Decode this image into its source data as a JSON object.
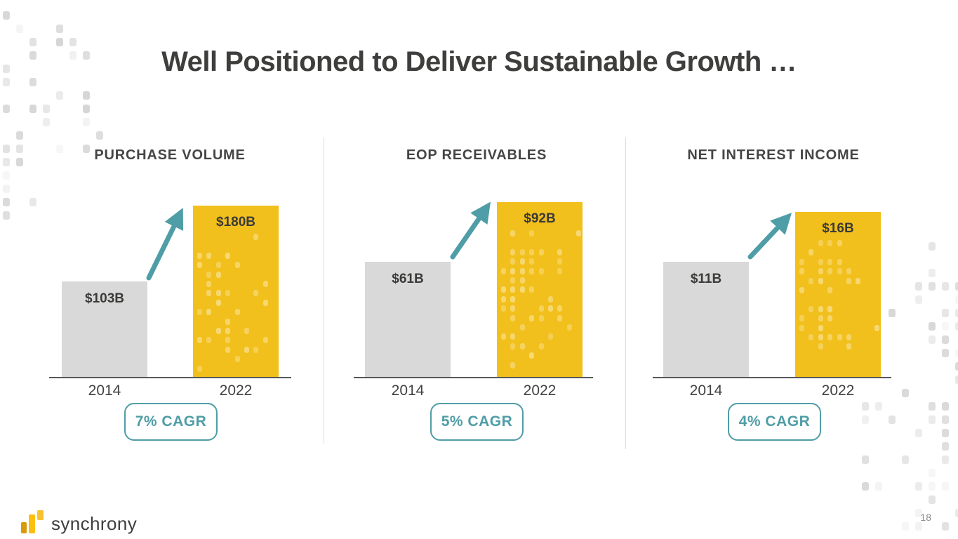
{
  "slide": {
    "title": "Well Positioned to Deliver Sustainable Growth …",
    "brand": "synchrony",
    "page_number": "18"
  },
  "charts": [
    {
      "title": "PURCHASE VOLUME",
      "start_year": "2014",
      "end_year": "2022",
      "start_label": "$103B",
      "end_label": "$180B",
      "cagr": "7% CAGR"
    },
    {
      "title": "EOP RECEIVABLES",
      "start_year": "2014",
      "end_year": "2022",
      "start_label": "$61B",
      "end_label": "$92B",
      "cagr": "5% CAGR"
    },
    {
      "title": "NET INTEREST INCOME",
      "start_year": "2014",
      "end_year": "2022",
      "start_label": "$11B",
      "end_label": "$16B",
      "cagr": "4% CAGR"
    }
  ],
  "chart_data": [
    {
      "type": "bar",
      "title": "PURCHASE VOLUME",
      "categories": [
        "2014",
        "2022"
      ],
      "values": [
        103,
        180
      ],
      "unit": "USD billions",
      "data_labels": [
        "$103B",
        "$180B"
      ],
      "annotation": "7% CAGR",
      "bar_colors": [
        "#d9d9d9",
        "#f2c01c"
      ],
      "grid": false,
      "legend": false
    },
    {
      "type": "bar",
      "title": "EOP RECEIVABLES",
      "categories": [
        "2014",
        "2022"
      ],
      "values": [
        61,
        92
      ],
      "unit": "USD billions",
      "data_labels": [
        "$61B",
        "$92B"
      ],
      "annotation": "5% CAGR",
      "bar_colors": [
        "#d9d9d9",
        "#f2c01c"
      ],
      "grid": false,
      "legend": false
    },
    {
      "type": "bar",
      "title": "NET INTEREST INCOME",
      "categories": [
        "2014",
        "2022"
      ],
      "values": [
        11,
        16
      ],
      "unit": "USD billions",
      "data_labels": [
        "$11B",
        "$16B"
      ],
      "annotation": "4% CAGR",
      "bar_colors": [
        "#d9d9d9",
        "#f2c01c"
      ],
      "grid": false,
      "legend": false
    }
  ],
  "colors": {
    "gold": "#f2c01c",
    "bar_gray": "#d9d9d9",
    "teal": "#4f9da6",
    "text_dark": "#3e3e3d",
    "axis": "#58595b"
  }
}
